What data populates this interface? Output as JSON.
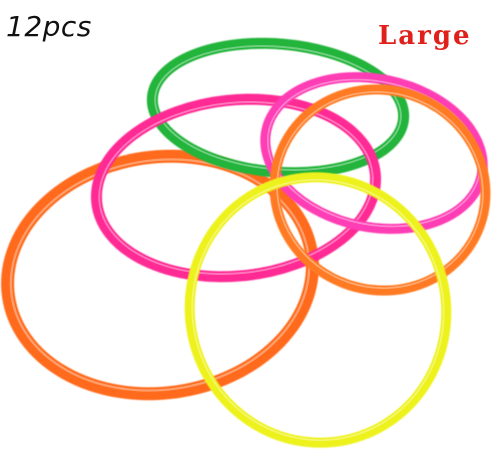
{
  "labels": {
    "count": "12pcs",
    "size": "Large"
  },
  "rings": [
    {
      "name": "orange-ring-large",
      "color": "#ff6a1a"
    },
    {
      "name": "green-ring",
      "color": "#22b43a"
    },
    {
      "name": "magenta-ring-left",
      "color": "#ff2a94"
    },
    {
      "name": "magenta-ring-right",
      "color": "#ff3cb4"
    },
    {
      "name": "orange-ring-right",
      "color": "#ff7a22"
    },
    {
      "name": "yellow-ring",
      "color": "#eef21c"
    }
  ],
  "colors": {
    "background": "#ffffff",
    "size_text": "#e0201a",
    "count_text": "#111111"
  }
}
